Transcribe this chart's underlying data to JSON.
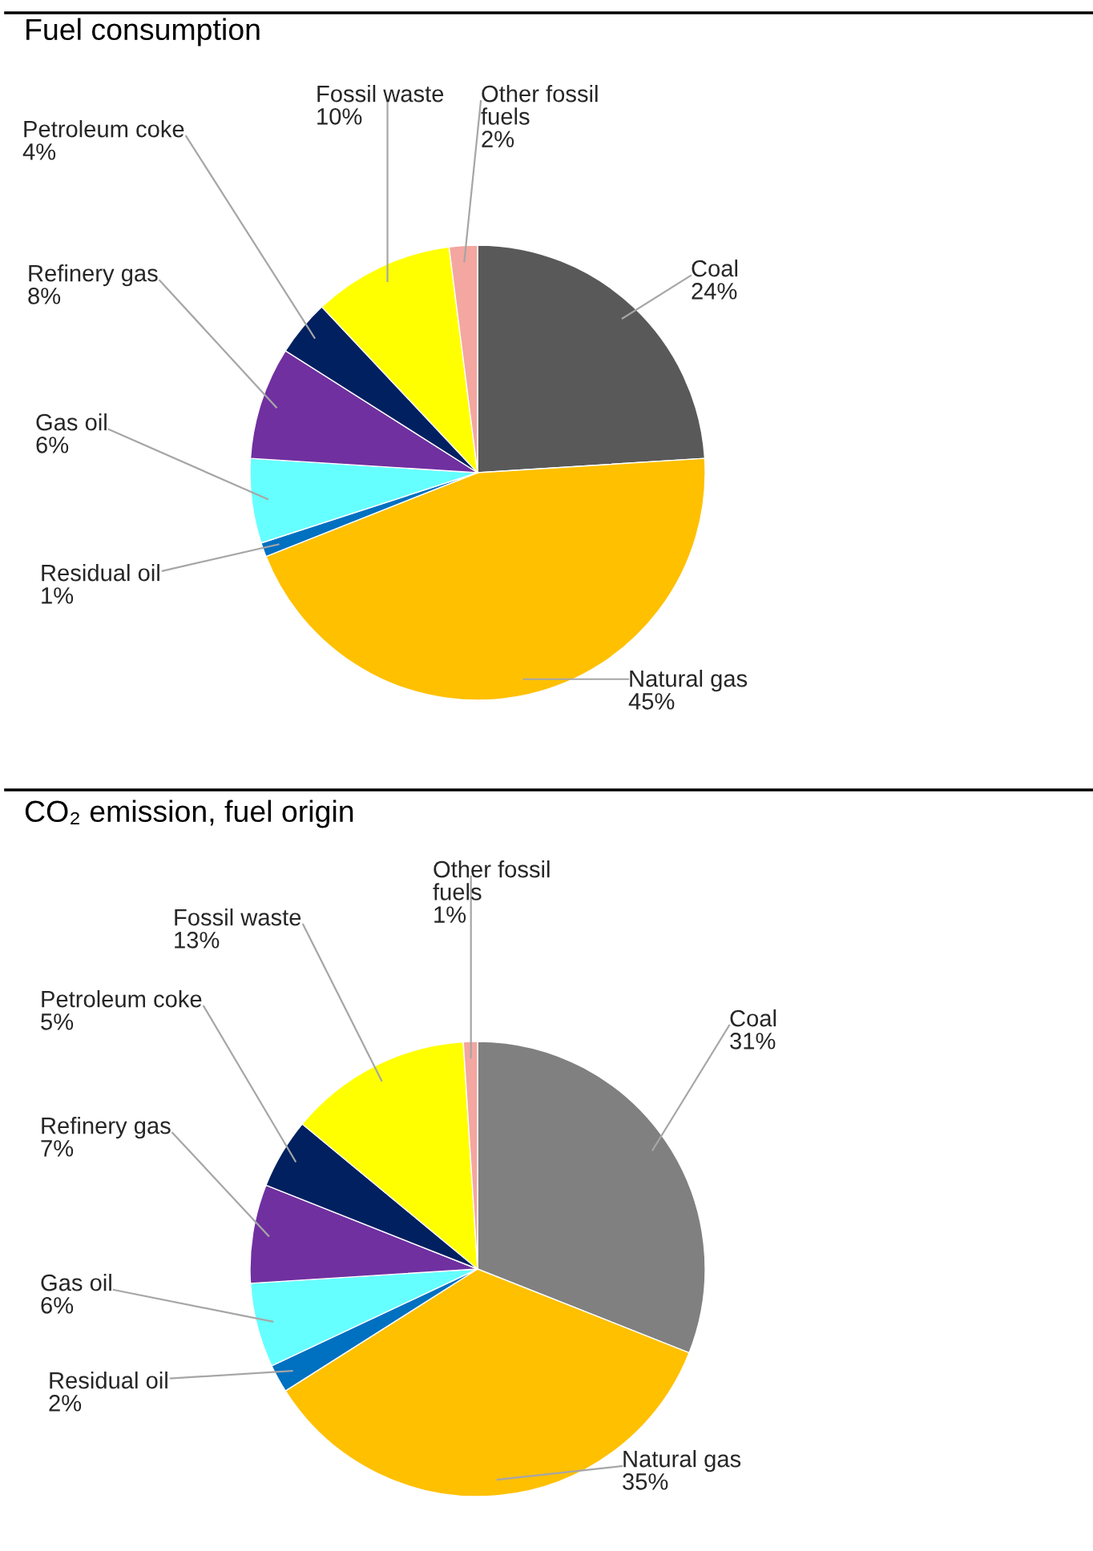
{
  "chart_data": [
    {
      "type": "pie",
      "title": "Fuel consumption",
      "categories": [
        "Coal",
        "Natural gas",
        "Residual oil",
        "Gas oil",
        "Refinery gas",
        "Petroleum coke",
        "Fossil waste",
        "Other fossil\nfuels"
      ],
      "values": [
        24,
        45,
        1,
        6,
        8,
        4,
        10,
        2
      ],
      "value_labels": [
        "24%",
        "45%",
        "1%",
        "6%",
        "8%",
        "4%",
        "10%",
        "2%"
      ],
      "colors": [
        "#595959",
        "#ffc000",
        "#0070c0",
        "#66ffff",
        "#7030a0",
        "#002060",
        "#ffff00",
        "#f4a6a0"
      ]
    },
    {
      "type": "pie",
      "title": "CO₂ emission, fuel origin",
      "categories": [
        "Coal",
        "Natural gas",
        "Residual oil",
        "Gas oil",
        "Refinery gas",
        "Petroleum coke",
        "Fossil waste",
        "Other fossil\nfuels"
      ],
      "values": [
        31,
        35,
        2,
        6,
        7,
        5,
        13,
        1
      ],
      "value_labels": [
        "31%",
        "35%",
        "2%",
        "6%",
        "7%",
        "5%",
        "13%",
        "1%"
      ],
      "colors": [
        "#808080",
        "#ffc000",
        "#0070c0",
        "#66ffff",
        "#7030a0",
        "#002060",
        "#ffff00",
        "#f4a6a0"
      ]
    }
  ]
}
